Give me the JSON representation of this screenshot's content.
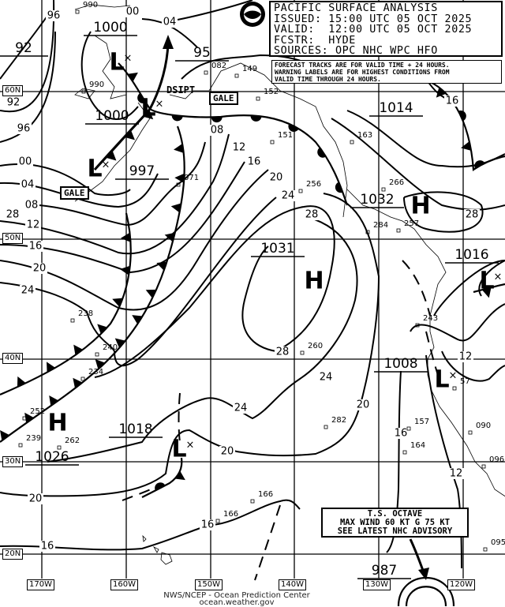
{
  "header": {
    "lines": [
      "PACIFIC SURFACE ANALYSIS",
      "ISSUED: 15:00 UTC 05 OCT 2025",
      "VALID:  12:00 UTC 05 OCT 2025",
      "FCSTR:  HYDE",
      "SOURCES: OPC NHC WPC HFO"
    ]
  },
  "notice": {
    "lines": [
      "FORECAST TRACKS ARE FOR VALID TIME + 24 HOURS.",
      "WARNING LABELS ARE FOR HIGHEST CONDITIONS FROM",
      "VALID TIME THROUGH 24 HOURS."
    ]
  },
  "logo": {
    "text": "NOAA"
  },
  "storm_box": {
    "lines": [
      "T.S. OCTAVE",
      "MAX WIND 60 KT G 75 KT",
      "SEE LATEST NHC ADVISORY"
    ]
  },
  "latitude_labels": [
    "60N",
    "50N",
    "40N",
    "30N",
    "20N"
  ],
  "longitude_labels": [
    "170W",
    "160W",
    "150W",
    "140W",
    "130W",
    "120W"
  ],
  "warnings": [
    "GALE",
    "GALE"
  ],
  "dissipating_label": "DSIPT",
  "pressure_centers": [
    {
      "type": "L",
      "value": "1000"
    },
    {
      "type": "L",
      "value": "1000"
    },
    {
      "type": "L",
      "value": "997"
    },
    {
      "type": "L",
      "value": "95"
    },
    {
      "type": "L",
      "value": "92"
    },
    {
      "type": "H",
      "value": "1032"
    },
    {
      "type": "H",
      "value": "1031"
    },
    {
      "type": "L",
      "value": "1016"
    },
    {
      "type": "L",
      "value": "1008"
    },
    {
      "type": "H",
      "value": "1026"
    },
    {
      "type": "L",
      "value": "1018"
    },
    {
      "type": "L",
      "value": "1014"
    },
    {
      "type": "TS",
      "value": "987"
    }
  ],
  "center_symbols": [
    "L",
    "L",
    "L",
    "H",
    "H",
    "L",
    "L",
    "H",
    "L"
  ],
  "isobar_labels": [
    "96",
    "00",
    "04",
    "92",
    "96",
    "00",
    "04",
    "08",
    "12",
    "16",
    "20",
    "24",
    "08",
    "12",
    "16",
    "20",
    "24",
    "28",
    "28",
    "24",
    "20",
    "24",
    "20",
    "20",
    "16",
    "16",
    "16",
    "12",
    "12",
    "28",
    "16",
    "28"
  ],
  "observations": [
    "990",
    "082",
    "149",
    "152",
    "151",
    "163",
    "071",
    "256",
    "266",
    "284",
    "257",
    "238",
    "240",
    "234",
    "252",
    "239",
    "262",
    "282",
    "260",
    "243",
    "157",
    "164",
    "090",
    "096",
    "166",
    "166",
    "095",
    "57",
    "990"
  ],
  "footer": {
    "line1": "NWS/NCEP - Ocean Prediction Center",
    "line2": "ocean.weather.gov"
  },
  "colors": {
    "ink": "#000000",
    "background": "#ffffff"
  }
}
